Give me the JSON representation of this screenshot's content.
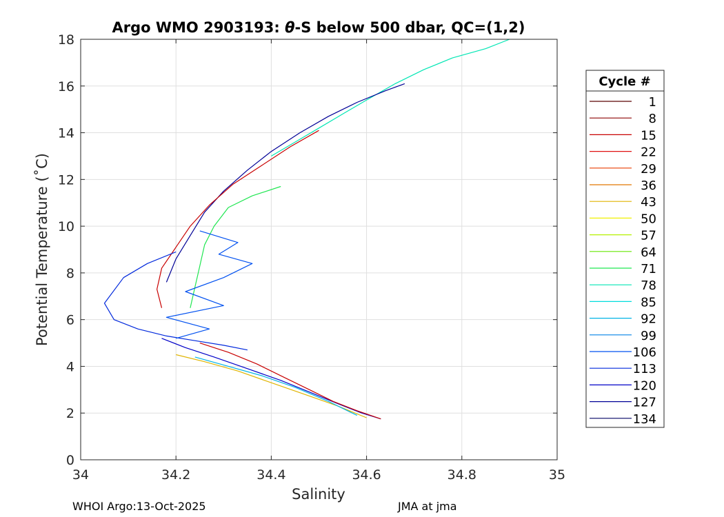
{
  "chart_data": {
    "type": "line",
    "title_parts": [
      "Argo WMO 2903193: ",
      "θ",
      "-S below 500 dbar,  QC=(1,2)"
    ],
    "xlabel": "Salinity",
    "ylabel": "Potential Temperature (˚C)",
    "xlim": [
      34,
      35
    ],
    "ylim": [
      0,
      18
    ],
    "x_ticks": [
      34,
      34.2,
      34.4,
      34.6,
      34.8,
      35
    ],
    "x_tick_labels": [
      "34",
      "34.2",
      "34.4",
      "34.6",
      "34.8",
      "35"
    ],
    "y_ticks": [
      0,
      2,
      4,
      6,
      8,
      10,
      12,
      14,
      16,
      18
    ],
    "y_tick_labels": [
      "0",
      "2",
      "4",
      "6",
      "8",
      "10",
      "12",
      "14",
      "16",
      "18"
    ],
    "grid": true,
    "legend": {
      "title": "Cycle #",
      "placement": "outside-right",
      "entries": [
        {
          "label": "1",
          "color": "#5a0000"
        },
        {
          "label": "8",
          "color": "#8c0000"
        },
        {
          "label": "15",
          "color": "#c80000"
        },
        {
          "label": "22",
          "color": "#e01010"
        },
        {
          "label": "29",
          "color": "#e83c00"
        },
        {
          "label": "36",
          "color": "#e07800"
        },
        {
          "label": "43",
          "color": "#e0b400"
        },
        {
          "label": "50",
          "color": "#f0f000"
        },
        {
          "label": "57",
          "color": "#b4f000"
        },
        {
          "label": "64",
          "color": "#64e600"
        },
        {
          "label": "71",
          "color": "#1ee650"
        },
        {
          "label": "78",
          "color": "#00e6b4"
        },
        {
          "label": "85",
          "color": "#00dcdc"
        },
        {
          "label": "92",
          "color": "#00b4e6"
        },
        {
          "label": "99",
          "color": "#0082e6"
        },
        {
          "label": "106",
          "color": "#0050f0"
        },
        {
          "label": "113",
          "color": "#0028dc"
        },
        {
          "label": "120",
          "color": "#0000c8"
        },
        {
          "label": "127",
          "color": "#000096"
        },
        {
          "label": "134",
          "color": "#000064"
        }
      ]
    },
    "series": [
      {
        "name": "upper-branch",
        "color": "#00e6b4",
        "x": [
          34.9,
          34.85,
          34.78,
          34.72,
          34.66,
          34.6,
          34.55,
          34.5,
          34.45,
          34.4
        ],
        "y": [
          18,
          17.6,
          17.2,
          16.7,
          16.1,
          15.4,
          14.8,
          14.2,
          13.6,
          13.0
        ]
      },
      {
        "name": "upper-branch-blue",
        "color": "#000096",
        "x": [
          34.68,
          34.64,
          34.58,
          34.52,
          34.46,
          34.4,
          34.35,
          34.3,
          34.26,
          34.23,
          34.2,
          34.18
        ],
        "y": [
          16.1,
          15.8,
          15.3,
          14.7,
          14.0,
          13.2,
          12.4,
          11.5,
          10.6,
          9.6,
          8.6,
          7.6
        ]
      },
      {
        "name": "upper-branch-red",
        "color": "#c80000",
        "x": [
          34.5,
          34.44,
          34.38,
          34.32,
          34.27,
          34.23,
          34.2,
          34.17,
          34.16,
          34.17
        ],
        "y": [
          14.1,
          13.4,
          12.6,
          11.8,
          10.9,
          10.0,
          9.1,
          8.2,
          7.3,
          6.5
        ]
      },
      {
        "name": "upper-branch-green",
        "color": "#1ee650",
        "x": [
          34.42,
          34.36,
          34.31,
          34.28,
          34.26,
          34.25,
          34.24,
          34.23
        ],
        "y": [
          11.7,
          11.3,
          10.8,
          10.0,
          9.2,
          8.3,
          7.4,
          6.5
        ]
      },
      {
        "name": "hook-blue",
        "color": "#0028dc",
        "x": [
          34.2,
          34.14,
          34.09,
          34.05,
          34.07,
          34.12,
          34.18,
          34.24,
          34.3,
          34.35
        ],
        "y": [
          8.9,
          8.4,
          7.8,
          6.7,
          6.0,
          5.6,
          5.3,
          5.1,
          4.9,
          4.7
        ]
      },
      {
        "name": "scatter-blue",
        "color": "#0050f0",
        "x": [
          34.25,
          34.33,
          34.29,
          34.36,
          34.3,
          34.22,
          34.3,
          34.18,
          34.27,
          34.2
        ],
        "y": [
          9.8,
          9.3,
          8.8,
          8.4,
          7.8,
          7.2,
          6.6,
          6.1,
          5.6,
          5.2
        ]
      },
      {
        "name": "lower-branch",
        "color": "#0000c8",
        "x": [
          34.17,
          34.22,
          34.28,
          34.35,
          34.42,
          34.48,
          34.54,
          34.59,
          34.63
        ],
        "y": [
          5.2,
          4.8,
          4.4,
          3.9,
          3.4,
          2.9,
          2.4,
          2.0,
          1.75
        ]
      },
      {
        "name": "lower-branch-red",
        "color": "#c80000",
        "x": [
          34.25,
          34.31,
          34.37,
          34.43,
          34.48,
          34.53,
          34.58,
          34.63
        ],
        "y": [
          5.0,
          4.6,
          4.1,
          3.5,
          3.0,
          2.5,
          2.1,
          1.75
        ]
      },
      {
        "name": "lower-branch-yellow",
        "color": "#e0b400",
        "x": [
          34.2,
          34.26,
          34.33,
          34.4,
          34.47,
          34.54,
          34.6
        ],
        "y": [
          4.5,
          4.2,
          3.8,
          3.3,
          2.8,
          2.3,
          1.8
        ]
      },
      {
        "name": "lower-branch-cyan",
        "color": "#00b4e6",
        "x": [
          34.24,
          34.31,
          34.38,
          34.45,
          34.52,
          34.58
        ],
        "y": [
          4.4,
          4.0,
          3.6,
          3.1,
          2.5,
          1.9
        ]
      }
    ]
  },
  "footer": {
    "left": "WHOI Argo:13-Oct-2025",
    "right": "JMA at jma"
  }
}
